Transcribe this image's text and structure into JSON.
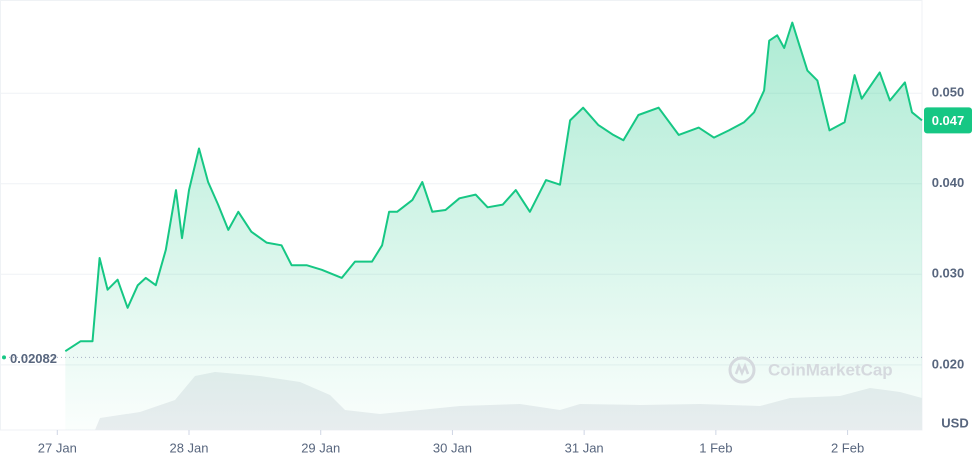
{
  "chart_data": {
    "type": "line",
    "x": [
      0.061,
      0.176,
      0.267,
      0.321,
      0.382,
      0.458,
      0.534,
      0.611,
      0.672,
      0.748,
      0.824,
      0.901,
      0.947,
      1.0,
      1.076,
      1.145,
      1.221,
      1.298,
      1.374,
      1.473,
      1.588,
      1.702,
      1.779,
      1.893,
      2.008,
      2.16,
      2.26,
      2.389,
      2.466,
      2.519,
      2.58,
      2.695,
      2.771,
      2.847,
      2.947,
      3.053,
      3.176,
      3.267,
      3.382,
      3.481,
      3.588,
      3.71,
      3.817,
      3.893,
      3.992,
      4.107,
      4.221,
      4.298,
      4.412,
      4.565,
      4.718,
      4.87,
      4.985,
      5.099,
      5.214,
      5.29,
      5.366,
      5.405,
      5.466,
      5.519,
      5.58,
      5.634,
      5.695,
      5.771,
      5.863,
      5.977,
      6.053,
      6.107,
      6.244,
      6.321,
      6.435,
      6.489,
      6.565
    ],
    "values": [
      0.0215,
      0.0226,
      0.0226,
      0.0318,
      0.0283,
      0.0294,
      0.0263,
      0.0288,
      0.0296,
      0.0288,
      0.0327,
      0.0393,
      0.034,
      0.0393,
      0.0439,
      0.0402,
      0.0377,
      0.0349,
      0.0369,
      0.0347,
      0.0335,
      0.0332,
      0.031,
      0.031,
      0.0305,
      0.0296,
      0.0314,
      0.0314,
      0.0332,
      0.0369,
      0.0369,
      0.0382,
      0.0402,
      0.0369,
      0.0371,
      0.0384,
      0.0388,
      0.0374,
      0.0377,
      0.0393,
      0.0369,
      0.0404,
      0.0399,
      0.047,
      0.0484,
      0.0465,
      0.0454,
      0.0448,
      0.0476,
      0.0484,
      0.0454,
      0.0462,
      0.0451,
      0.0459,
      0.0468,
      0.0479,
      0.0503,
      0.0558,
      0.0564,
      0.055,
      0.0578,
      0.0553,
      0.0525,
      0.0514,
      0.0459,
      0.0468,
      0.052,
      0.0494,
      0.0523,
      0.0492,
      0.0512,
      0.0479,
      0.047
    ],
    "color": "#16c784",
    "xlim": [
      -0.435,
      6.565
    ],
    "ylim": [
      0.0128,
      0.0603
    ],
    "xticks": [
      {
        "value": 0,
        "label": "27 Jan"
      },
      {
        "value": 1,
        "label": "28 Jan"
      },
      {
        "value": 2,
        "label": "29 Jan"
      },
      {
        "value": 3,
        "label": "30 Jan"
      },
      {
        "value": 4,
        "label": "31 Jan"
      },
      {
        "value": 5,
        "label": "1 Feb"
      },
      {
        "value": 6,
        "label": "2 Feb"
      }
    ],
    "yticks": [
      {
        "value": 0.05,
        "label": "0.050"
      },
      {
        "value": 0.04,
        "label": "0.040"
      },
      {
        "value": 0.03,
        "label": "0.030"
      },
      {
        "value": 0.02,
        "label": "0.020"
      }
    ],
    "grid": true,
    "baseline": 0.02082,
    "current": 0.047,
    "unit": "USD",
    "watermark": "CoinMarketCap"
  }
}
